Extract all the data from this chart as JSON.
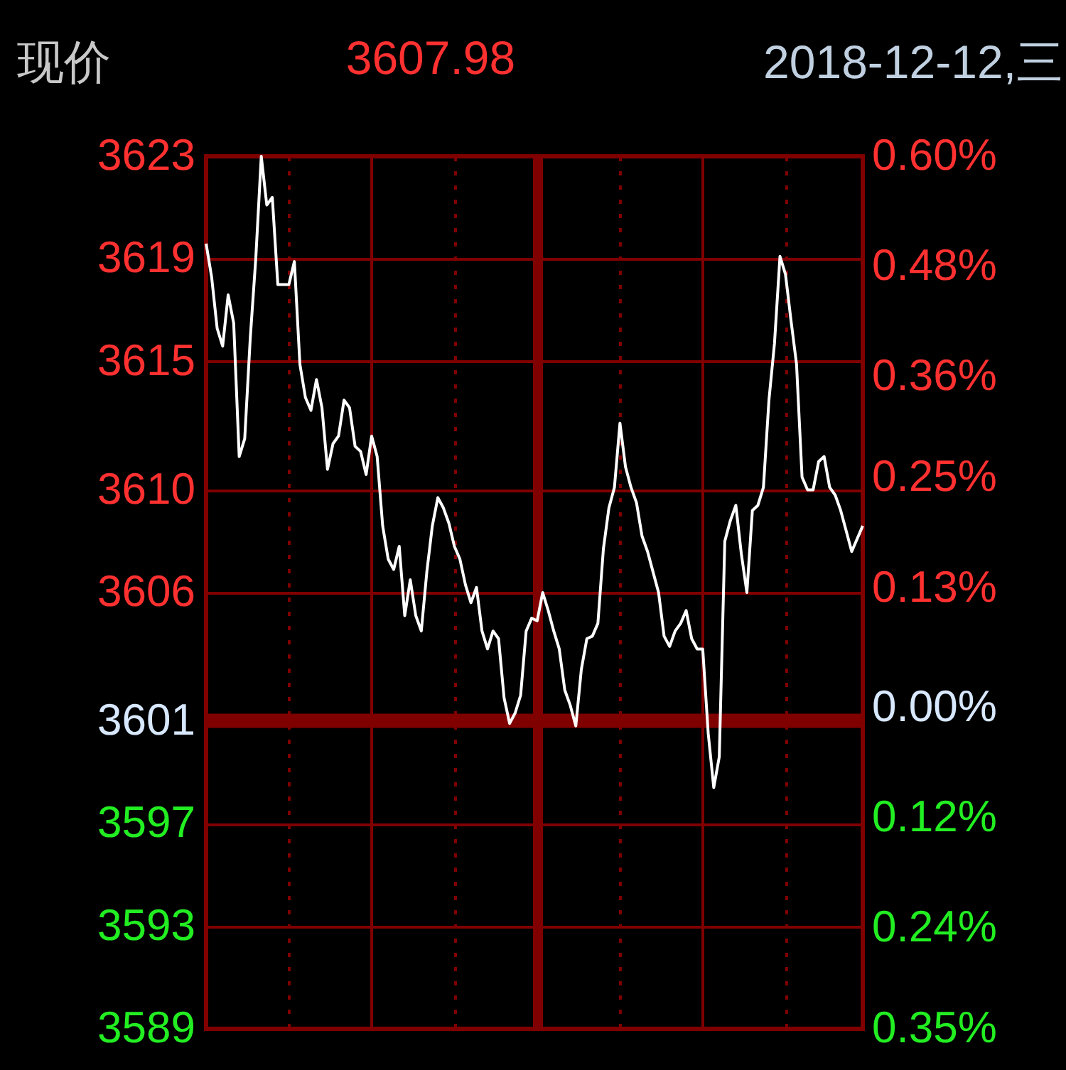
{
  "chart_data": {
    "type": "line",
    "title": "现价",
    "annotations": [
      "3607.98",
      "2018-12-12,三"
    ],
    "categories": [
      null,
      null,
      null,
      null,
      null,
      null,
      null,
      null,
      null,
      null,
      null,
      null,
      null,
      null,
      null,
      null,
      null,
      null,
      null,
      null,
      null,
      null,
      null,
      null,
      null,
      null,
      null,
      null,
      null,
      null,
      null,
      null,
      null,
      null,
      null,
      null,
      null,
      null,
      null,
      null,
      null,
      null,
      null,
      null,
      null,
      null,
      null,
      null,
      null,
      null,
      null,
      null,
      null,
      null,
      null,
      null,
      null,
      null,
      null,
      null,
      null,
      null,
      null,
      null,
      null,
      null,
      null,
      null,
      null,
      null,
      null,
      null,
      null,
      null,
      null,
      null,
      null,
      null,
      null,
      null,
      null,
      null,
      null,
      null,
      null,
      null,
      null,
      null,
      null,
      null,
      null,
      null,
      null,
      null,
      null,
      null,
      null,
      null,
      null,
      null,
      null,
      null,
      null,
      null,
      null,
      null,
      null,
      null,
      null,
      null,
      null,
      null,
      null,
      null,
      null,
      null,
      null,
      null,
      null,
      null
    ],
    "series": [
      {
        "color": "#ffffff",
        "values": [
          3619.6,
          3618.3,
          3616.3,
          3615.6,
          3617.6,
          3616.5,
          3611.3,
          3612.0,
          3615.9,
          3619.0,
          3623.0,
          3621.1,
          3621.4,
          3618.0,
          3618.0,
          3618.0,
          3618.9,
          3614.9,
          3613.6,
          3613.1,
          3614.3,
          3613.2,
          3610.8,
          3611.8,
          3612.1,
          3613.5,
          3613.2,
          3611.7,
          3611.5,
          3610.6,
          3612.1,
          3611.3,
          3608.6,
          3607.3,
          3606.9,
          3607.8,
          3605.1,
          3606.5,
          3605.1,
          3604.5,
          3606.8,
          3608.6,
          3609.7,
          3609.3,
          3608.7,
          3607.8,
          3607.3,
          3606.3,
          3605.6,
          3606.2,
          3604.5,
          3603.8,
          3604.5,
          3604.2,
          3601.9,
          3600.9,
          3601.3,
          3602.0,
          3604.5,
          3605.0,
          3604.9,
          3606.0,
          3605.3,
          3604.5,
          3603.8,
          3602.2,
          3601.6,
          3600.8,
          3603.0,
          3604.2,
          3604.3,
          3604.8,
          3607.7,
          3609.3,
          3610.1,
          3612.6,
          3610.9,
          3610.1,
          3609.5,
          3608.2,
          3607.6,
          3606.8,
          3606.0,
          3604.3,
          3603.9,
          3604.5,
          3604.8,
          3605.3,
          3604.2,
          3603.8,
          3603.8,
          3600.5,
          3598.4,
          3599.6,
          3608.0,
          3608.8,
          3609.4,
          3607.5,
          3606.0,
          3609.2,
          3609.4,
          3610.1,
          3613.5,
          3615.7,
          3619.1,
          3618.4,
          3616.6,
          3614.9,
          3610.5,
          3610.0,
          3610.0,
          3611.1,
          3611.3,
          3610.1,
          3609.8,
          3609.2,
          3608.4,
          3607.6,
          3608.1,
          3608.6
        ]
      }
    ],
    "ylim": [
      3589,
      3623
    ],
    "yticks": [
      3589,
      3593,
      3597,
      3601,
      3606,
      3610,
      3615,
      3619,
      3623
    ],
    "y2lim": [
      -0.35,
      0.6
    ],
    "y2ticks": [
      {
        "value": -0.35,
        "label": "0.35%"
      },
      {
        "value": -0.24,
        "label": "0.24%"
      },
      {
        "value": -0.12,
        "label": "0.12%"
      },
      {
        "value": 0,
        "label": "0.00%"
      },
      {
        "value": 0.13,
        "label": "0.13%"
      },
      {
        "value": 0.25,
        "label": "0.25%"
      },
      {
        "value": 0.36,
        "label": "0.36%"
      },
      {
        "value": 0.48,
        "label": "0.48%"
      },
      {
        "value": 0.6,
        "label": "0.60%"
      }
    ],
    "ref_lines": [
      {
        "axis": "y",
        "value": 3601,
        "color": "#800000"
      }
    ],
    "grid": true
  }
}
